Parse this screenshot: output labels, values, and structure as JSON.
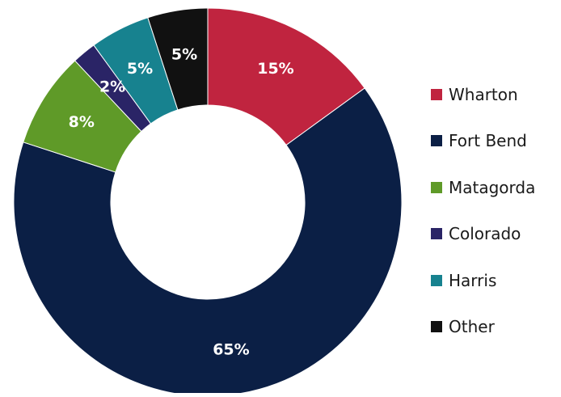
{
  "chart_data": {
    "type": "pie",
    "variant": "donut",
    "title": "",
    "legend_position": "right",
    "slices": [
      {
        "label": "Wharton",
        "value": 15,
        "display": "15%",
        "color": "#c0243f"
      },
      {
        "label": "Fort Bend",
        "value": 65,
        "display": "65%",
        "color": "#0b1f45"
      },
      {
        "label": "Matagorda",
        "value": 8,
        "display": "8%",
        "color": "#5f9a28"
      },
      {
        "label": "Colorado",
        "value": 2,
        "display": "2%",
        "color": "#2a2466"
      },
      {
        "label": "Harris",
        "value": 5,
        "display": "5%",
        "color": "#17828f"
      },
      {
        "label": "Other",
        "value": 5,
        "display": "5%",
        "color": "#111111"
      }
    ]
  }
}
